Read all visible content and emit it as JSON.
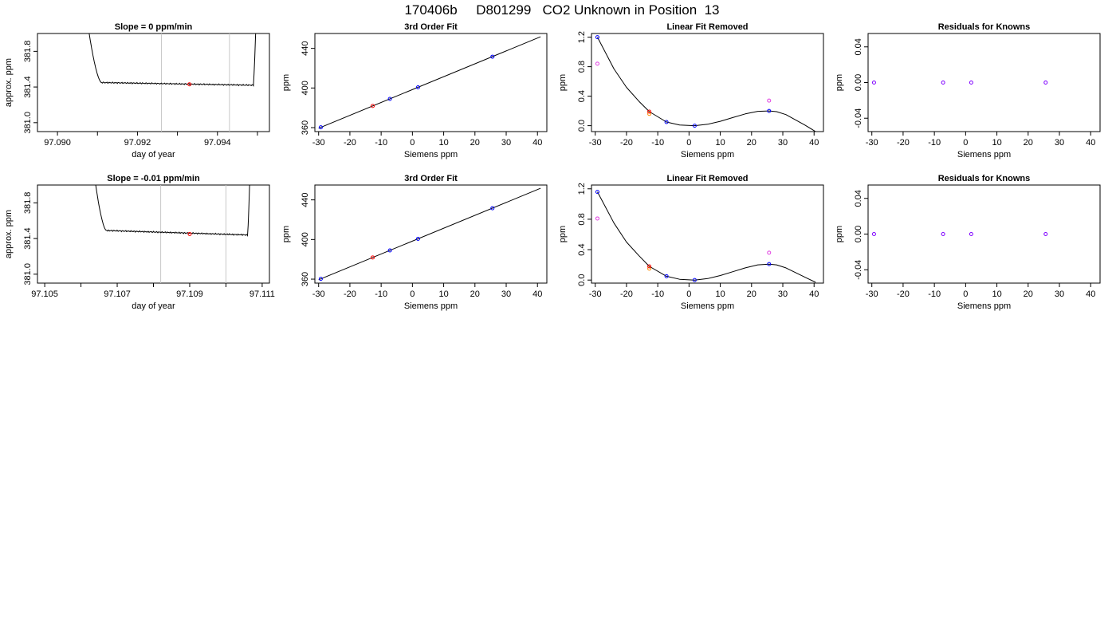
{
  "figure": {
    "title": "170406b     D801299   CO2 Unknown in Position  13"
  },
  "colors": {
    "axis": "#000000",
    "curve": "#000000",
    "vline": "#c8c8c8",
    "blue": "#0000ff",
    "red": "#ff0000",
    "magenta": "#e040e0",
    "orange": "#ff8c00",
    "purple": "#7f00ff"
  },
  "chart_data": [
    {
      "id": "r1c1",
      "type": "line",
      "title": "Slope =  0  ppm/min",
      "xlabel": "day of year",
      "ylabel": "approx. ppm",
      "xlim": [
        97.0895,
        97.0953
      ],
      "ylim": [
        380.9,
        382.0
      ],
      "xticks": [
        97.09,
        97.091,
        97.092,
        97.093,
        97.094,
        97.095
      ],
      "xticklabels": [
        "97.090",
        "",
        "97.092",
        "",
        "97.094",
        ""
      ],
      "yticks": [
        381.0,
        381.4,
        381.8
      ],
      "yticklabels": [
        "381.0",
        "381.4",
        "381.8"
      ],
      "vlines": [
        97.0926,
        97.0943
      ],
      "trace": {
        "x_start": 97.0906,
        "x_end": 97.095,
        "t_start": 97.0911,
        "t_end": 97.0949,
        "level": 381.42,
        "t_level": 381.45,
        "noise": 0.008
      },
      "marker": {
        "x": 97.0933,
        "y": 381.43,
        "color": "red"
      }
    },
    {
      "id": "r1c2",
      "type": "scatter",
      "title": "3rd Order Fit",
      "xlabel": "Siemens ppm",
      "ylabel": "ppm",
      "xlim": [
        -31.2,
        43
      ],
      "ylim": [
        356,
        455
      ],
      "xticks": [
        -30,
        -20,
        -10,
        0,
        10,
        20,
        30,
        40
      ],
      "xticklabels": [
        "-30",
        "-20",
        "-10",
        "0",
        "10",
        "20",
        "30",
        "40"
      ],
      "yticks": [
        360,
        400,
        440
      ],
      "yticklabels": [
        "360",
        "400",
        "440"
      ],
      "line": {
        "x": [
          -30,
          41
        ],
        "y": [
          359.4,
          451.7
        ]
      },
      "points": [
        {
          "x": -29.3,
          "y": 360.3,
          "color": "blue"
        },
        {
          "x": -12.7,
          "y": 381.9,
          "color": "red"
        },
        {
          "x": -7.2,
          "y": 389.0,
          "color": "blue"
        },
        {
          "x": 1.8,
          "y": 400.7,
          "color": "blue"
        },
        {
          "x": 25.6,
          "y": 431.6,
          "color": "blue"
        }
      ]
    },
    {
      "id": "r1c3",
      "type": "scatter",
      "title": "Linear Fit Removed",
      "xlabel": "Siemens ppm",
      "ylabel": "ppm",
      "xlim": [
        -31.2,
        43
      ],
      "ylim": [
        -0.08,
        1.25
      ],
      "xticks": [
        -30,
        -20,
        -10,
        0,
        10,
        20,
        30,
        40
      ],
      "xticklabels": [
        "-30",
        "-20",
        "-10",
        "0",
        "10",
        "20",
        "30",
        "40"
      ],
      "yticks": [
        0.0,
        0.4,
        0.8,
        1.2
      ],
      "yticklabels": [
        "0.0",
        "0.4",
        "0.8",
        "1.2"
      ],
      "curve": {
        "x": [
          -29.3,
          -24,
          -20,
          -16,
          -12.7,
          -7.2,
          -3,
          1.8,
          6,
          10,
          14,
          18,
          22,
          25.6,
          28,
          31,
          34,
          37,
          40.5
        ],
        "y": [
          1.2,
          0.77,
          0.52,
          0.33,
          0.19,
          0.05,
          0.01,
          0.0,
          0.02,
          0.06,
          0.11,
          0.16,
          0.195,
          0.2,
          0.19,
          0.15,
          0.08,
          0.01,
          -0.08
        ]
      },
      "points": [
        {
          "x": -29.3,
          "y": 1.2,
          "color": "blue"
        },
        {
          "x": -29.3,
          "y": 0.84,
          "color": "magenta"
        },
        {
          "x": -12.7,
          "y": 0.16,
          "color": "orange"
        },
        {
          "x": -12.7,
          "y": 0.19,
          "color": "red"
        },
        {
          "x": -7.2,
          "y": 0.05,
          "color": "blue"
        },
        {
          "x": 1.8,
          "y": 0.0,
          "color": "blue"
        },
        {
          "x": 25.6,
          "y": 0.2,
          "color": "blue"
        },
        {
          "x": 25.6,
          "y": 0.34,
          "color": "magenta"
        }
      ]
    },
    {
      "id": "r1c4",
      "type": "scatter",
      "title": "Residuals for Knowns",
      "xlabel": "Siemens ppm",
      "ylabel": "ppm",
      "xlim": [
        -31.2,
        43
      ],
      "ylim": [
        -0.055,
        0.055
      ],
      "xticks": [
        -30,
        -20,
        -10,
        0,
        10,
        20,
        30,
        40
      ],
      "xticklabels": [
        "-30",
        "-20",
        "-10",
        "0",
        "10",
        "20",
        "30",
        "40"
      ],
      "yticks": [
        -0.04,
        0.0,
        0.04
      ],
      "yticklabels": [
        "-0.04",
        "0.00",
        "0.04"
      ],
      "points": [
        {
          "x": -29.3,
          "y": 0.0,
          "color": "purple"
        },
        {
          "x": -7.2,
          "y": 0.0,
          "color": "purple"
        },
        {
          "x": 1.8,
          "y": 0.0,
          "color": "purple"
        },
        {
          "x": 25.6,
          "y": 0.0,
          "color": "purple"
        }
      ]
    },
    {
      "id": "r2c1",
      "type": "line",
      "title": "Slope =  -0.01  ppm/min",
      "xlabel": "day of year",
      "ylabel": "approx. ppm",
      "xlim": [
        97.1048,
        97.1112
      ],
      "ylim": [
        380.9,
        382.0
      ],
      "xticks": [
        97.105,
        97.106,
        97.107,
        97.108,
        97.109,
        97.11,
        97.111
      ],
      "xticklabels": [
        "97.105",
        "",
        "97.107",
        "",
        "97.109",
        "",
        "97.111"
      ],
      "yticks": [
        381.0,
        381.4,
        381.8
      ],
      "yticklabels": [
        "381.0",
        "381.4",
        "381.8"
      ],
      "vlines": [
        97.1082,
        97.11
      ],
      "trace": {
        "x_start": 97.1062,
        "x_end": 97.1107,
        "t_start": 97.1067,
        "t_end": 97.1106,
        "level": 381.44,
        "t_level": 381.49,
        "noise": 0.008
      },
      "marker": {
        "x": 97.109,
        "y": 381.45,
        "color": "red"
      }
    },
    {
      "id": "r2c2",
      "type": "scatter",
      "title": "3rd Order Fit",
      "xlabel": "Siemens ppm",
      "ylabel": "ppm",
      "xlim": [
        -31.2,
        43
      ],
      "ylim": [
        356,
        455
      ],
      "xticks": [
        -30,
        -20,
        -10,
        0,
        10,
        20,
        30,
        40
      ],
      "xticklabels": [
        "-30",
        "-20",
        "-10",
        "0",
        "10",
        "20",
        "30",
        "40"
      ],
      "yticks": [
        360,
        400,
        440
      ],
      "yticklabels": [
        "360",
        "400",
        "440"
      ],
      "line": {
        "x": [
          -30,
          41
        ],
        "y": [
          359.4,
          451.7
        ]
      },
      "points": [
        {
          "x": -29.3,
          "y": 360.3,
          "color": "blue"
        },
        {
          "x": -12.7,
          "y": 381.9,
          "color": "red"
        },
        {
          "x": -7.2,
          "y": 389.0,
          "color": "blue"
        },
        {
          "x": 1.8,
          "y": 400.7,
          "color": "blue"
        },
        {
          "x": 25.6,
          "y": 431.6,
          "color": "blue"
        }
      ]
    },
    {
      "id": "r2c3",
      "type": "scatter",
      "title": "Linear Fit Removed",
      "xlabel": "Siemens ppm",
      "ylabel": "ppm",
      "xlim": [
        -31.2,
        43
      ],
      "ylim": [
        -0.04,
        1.25
      ],
      "xticks": [
        -30,
        -20,
        -10,
        0,
        10,
        20,
        30,
        40
      ],
      "xticklabels": [
        "-30",
        "-20",
        "-10",
        "0",
        "10",
        "20",
        "30",
        "40"
      ],
      "yticks": [
        0.0,
        0.4,
        0.8,
        1.2
      ],
      "yticklabels": [
        "0.0",
        "0.4",
        "0.8",
        "1.2"
      ],
      "curve": {
        "x": [
          -29.3,
          -24,
          -20,
          -16,
          -12.7,
          -7.2,
          -3,
          1.8,
          6,
          10,
          14,
          18,
          22,
          25.6,
          28,
          31,
          34,
          37,
          40.5
        ],
        "y": [
          1.16,
          0.75,
          0.5,
          0.32,
          0.18,
          0.05,
          0.01,
          0.0,
          0.02,
          0.06,
          0.11,
          0.16,
          0.2,
          0.21,
          0.2,
          0.16,
          0.1,
          0.04,
          -0.03
        ]
      },
      "points": [
        {
          "x": -29.3,
          "y": 1.16,
          "color": "blue"
        },
        {
          "x": -29.3,
          "y": 0.81,
          "color": "magenta"
        },
        {
          "x": -12.7,
          "y": 0.15,
          "color": "orange"
        },
        {
          "x": -12.7,
          "y": 0.18,
          "color": "red"
        },
        {
          "x": -7.2,
          "y": 0.05,
          "color": "blue"
        },
        {
          "x": 1.8,
          "y": 0.0,
          "color": "blue"
        },
        {
          "x": 25.6,
          "y": 0.21,
          "color": "blue"
        },
        {
          "x": 25.6,
          "y": 0.36,
          "color": "magenta"
        }
      ]
    },
    {
      "id": "r2c4",
      "type": "scatter",
      "title": "Residuals for Knowns",
      "xlabel": "Siemens ppm",
      "ylabel": "ppm",
      "xlim": [
        -31.2,
        43
      ],
      "ylim": [
        -0.055,
        0.055
      ],
      "xticks": [
        -30,
        -20,
        -10,
        0,
        10,
        20,
        30,
        40
      ],
      "xticklabels": [
        "-30",
        "-20",
        "-10",
        "0",
        "10",
        "20",
        "30",
        "40"
      ],
      "yticks": [
        -0.04,
        0.0,
        0.04
      ],
      "yticklabels": [
        "-0.04",
        "0.00",
        "0.04"
      ],
      "points": [
        {
          "x": -29.3,
          "y": 0.0,
          "color": "purple"
        },
        {
          "x": -7.2,
          "y": 0.0,
          "color": "purple"
        },
        {
          "x": 1.8,
          "y": 0.0,
          "color": "purple"
        },
        {
          "x": 25.6,
          "y": 0.0,
          "color": "purple"
        }
      ]
    }
  ]
}
